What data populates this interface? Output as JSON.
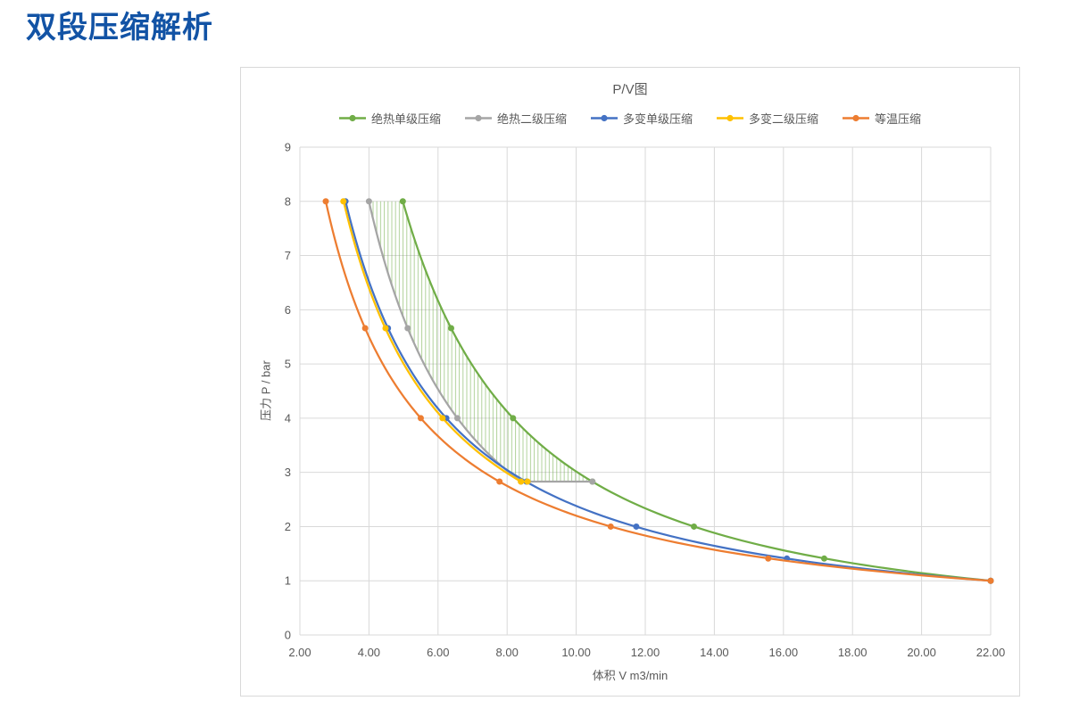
{
  "page": {
    "title": "双段压缩解析",
    "accent_blue": "#1253A5"
  },
  "chart": {
    "title": "P/V图",
    "xlabel": "体积 V m3/min",
    "ylabel": "压力 P / bar"
  },
  "chart_data": {
    "type": "line",
    "title": "P/V图",
    "xlabel": "体积 V m3/min",
    "ylabel": "压力 P / bar",
    "xlim": [
      2,
      22
    ],
    "ylim": [
      0,
      9
    ],
    "grid": true,
    "legend_position": "top",
    "x_tick_values": [
      2,
      4,
      6,
      8,
      10,
      12,
      14,
      16,
      18,
      20,
      22
    ],
    "x_tick_labels": [
      "2.00",
      "4.00",
      "6.00",
      "8.00",
      "10.00",
      "12.00",
      "14.00",
      "16.00",
      "18.00",
      "20.00",
      "22.00"
    ],
    "y_tick_values": [
      0,
      1,
      2,
      3,
      4,
      5,
      6,
      7,
      8,
      9
    ],
    "y_tick_labels": [
      "0",
      "1",
      "2",
      "3",
      "4",
      "5",
      "6",
      "7",
      "8",
      "9"
    ],
    "colors": {
      "grid": "#D9D9D9",
      "text": "#595959"
    },
    "series": [
      {
        "name": "绝热单级压缩",
        "color": "#70AD47",
        "points_p_v": [
          [
            8,
            4.98
          ],
          [
            5.66,
            6.38
          ],
          [
            4,
            8.17
          ],
          [
            2.83,
            10.47
          ],
          [
            2,
            13.41
          ],
          [
            1.41,
            17.18
          ],
          [
            1,
            22
          ]
        ],
        "curve": {
          "type": "power",
          "c": 22,
          "n": 1.4,
          "p_from": 8,
          "p_to": 1
        }
      },
      {
        "name": "绝热二级压缩",
        "color": "#A5A5A5",
        "points_p_v": [
          [
            2.83,
            10.47
          ],
          [
            2.83,
            8.4
          ],
          [
            4,
            6.56
          ],
          [
            5.66,
            5.12
          ],
          [
            8,
            4.0
          ]
        ],
        "curve": {
          "type": "two_stage",
          "v_start": 10.47,
          "v0": 8.4,
          "pi": 2.83,
          "n": 1.4,
          "p_to": 8
        }
      },
      {
        "name": "多变单级压缩",
        "color": "#4472C4",
        "points_p_v": [
          [
            8,
            3.32
          ],
          [
            5.66,
            4.55
          ],
          [
            4,
            6.24
          ],
          [
            2.83,
            8.56
          ],
          [
            2,
            11.74
          ],
          [
            1.41,
            16.1
          ],
          [
            1,
            22
          ]
        ],
        "curve": {
          "type": "power",
          "c": 22,
          "n": 1.1,
          "p_from": 8,
          "p_to": 1
        }
      },
      {
        "name": "多变二级压缩",
        "color": "#FFC000",
        "points_p_v": [
          [
            2.83,
            8.59
          ],
          [
            2.83,
            8.4
          ],
          [
            4,
            6.13
          ],
          [
            5.66,
            4.48
          ],
          [
            8,
            3.26
          ]
        ],
        "curve": {
          "type": "two_stage",
          "v_start": 8.59,
          "v0": 8.4,
          "pi": 2.83,
          "n": 1.1,
          "p_to": 8
        }
      },
      {
        "name": "等温压缩",
        "color": "#ED7D31",
        "points_p_v": [
          [
            8,
            2.75
          ],
          [
            5.66,
            3.89
          ],
          [
            4,
            5.5
          ],
          [
            2.83,
            7.78
          ],
          [
            2,
            11
          ],
          [
            1.41,
            15.56
          ],
          [
            1,
            22
          ]
        ],
        "curve": {
          "type": "power",
          "c": 22,
          "n": 1.0,
          "p_from": 8,
          "p_to": 1
        }
      }
    ],
    "hatch_region": {
      "description": "saved work area between adiabatic two-stage and adiabatic single-stage curves",
      "left_curve": {
        "v0": 8.4,
        "pi": 2.83,
        "n": 1.4
      },
      "right_curve": {
        "c": 22,
        "n": 1.4
      },
      "p_range": [
        2.83,
        8
      ],
      "color": "#70AD47"
    }
  }
}
